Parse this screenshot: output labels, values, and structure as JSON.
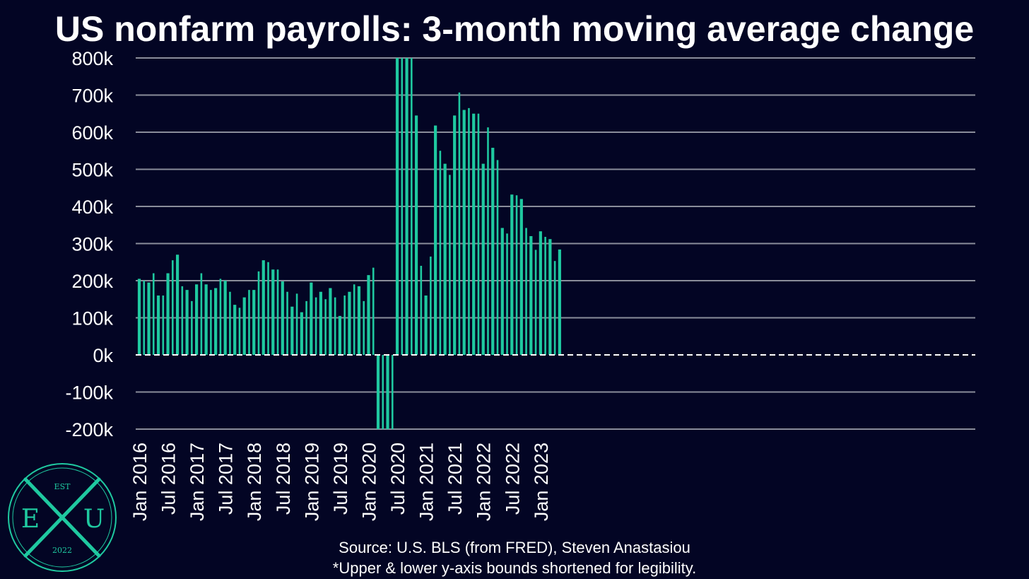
{
  "chart_data": {
    "type": "bar",
    "title": "US nonfarm payrolls: 3-month moving average change",
    "ylim": [
      -200,
      800
    ],
    "yticks": [
      800,
      700,
      600,
      500,
      400,
      300,
      200,
      100,
      0,
      -100,
      -200
    ],
    "ytick_labels": [
      "800k",
      "700k",
      "600k",
      "500k",
      "400k",
      "300k",
      "200k",
      "100k",
      "0k",
      "-100k",
      "-200k"
    ],
    "x_start": "Jan 2016",
    "x_tick_labels": [
      "Jan 2016",
      "Jul 2016",
      "Jan 2017",
      "Jul 2017",
      "Jan 2018",
      "Jul 2018",
      "Jan 2019",
      "Jul 2019",
      "Jan 2020",
      "Jul 2020",
      "Jan 2021",
      "Jul 2021",
      "Jan 2022",
      "Jul 2022",
      "Jan 2023"
    ],
    "grid": "horizontal",
    "bar_color": "#1fc9a0",
    "values": [
      205,
      200,
      195,
      220,
      160,
      160,
      220,
      255,
      270,
      185,
      175,
      145,
      190,
      220,
      190,
      175,
      180,
      205,
      200,
      170,
      135,
      127,
      155,
      175,
      175,
      225,
      255,
      250,
      230,
      230,
      198,
      170,
      130,
      165,
      115,
      145,
      195,
      155,
      170,
      150,
      180,
      155,
      105,
      160,
      170,
      190,
      185,
      145,
      215,
      235,
      -200,
      -200,
      -200,
      -200,
      800,
      800,
      800,
      800,
      645,
      240,
      160,
      265,
      618,
      550,
      515,
      485,
      645,
      707,
      660,
      665,
      650,
      650,
      515,
      613,
      558,
      525,
      342,
      327,
      432,
      430,
      420,
      342,
      320,
      283,
      333,
      318,
      312,
      253,
      284
    ]
  },
  "footer": {
    "source": "Source: U.S. BLS (from FRED), Steven Anastasiou",
    "note": "*Upper & lower y-axis bounds shortened for legibility."
  },
  "logo": {
    "top": "EST",
    "left": "E",
    "center": "X",
    "right": "U",
    "bottom": "2022",
    "color": "#1fc9a0"
  }
}
